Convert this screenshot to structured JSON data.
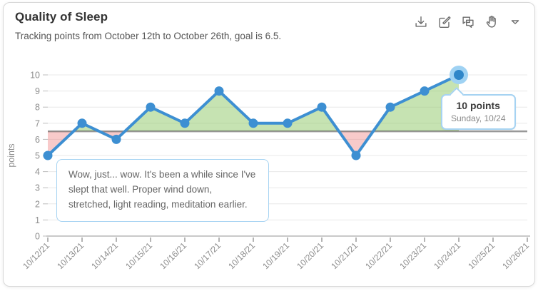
{
  "header": {
    "title": "Quality of Sleep",
    "subtitle": "Tracking points from October 12th to October 26th, goal is 6.5."
  },
  "toolbar": {
    "icons": [
      "download-icon",
      "edit-icon",
      "comments-icon",
      "pan-icon",
      "chevron-down-icon"
    ]
  },
  "chart_data": {
    "type": "line",
    "title": "Quality of Sleep",
    "xlabel": "",
    "ylabel": "points",
    "categories": [
      "10/12/21",
      "10/13/21",
      "10/14/21",
      "10/15/21",
      "10/16/21",
      "10/17/21",
      "10/18/21",
      "10/19/21",
      "10/20/21",
      "10/21/21",
      "10/22/21",
      "10/23/21",
      "10/24/21",
      "10/25/21",
      "10/26/21"
    ],
    "values": [
      5,
      7,
      6,
      8,
      7,
      9,
      7,
      7,
      8,
      5,
      8,
      9,
      10,
      null,
      null
    ],
    "goal": 6.5,
    "ylim": [
      0,
      10
    ],
    "y_ticks": [
      0,
      1,
      2,
      3,
      4,
      5,
      6,
      7,
      8,
      9,
      10
    ],
    "grid": true,
    "highlight_index": 12,
    "colors": {
      "line": "#3d8fd2",
      "point": "#3d8fd2",
      "highlight_halo": "#9fd2f3",
      "highlight_point": "#2e86c9",
      "above_goal_fill": "rgba(141,199,101,0.5)",
      "below_goal_fill": "rgba(238,128,128,0.42)",
      "goal_line": "rgba(70,70,70,0.55)",
      "grid_line": "#e8e8e8",
      "axis_line": "#c9c9c9",
      "tick": "#9b9b9b",
      "tick_label": "#8e8e8e"
    }
  },
  "tooltip": {
    "value_label": "10 points",
    "date_label": "Sunday, 10/24"
  },
  "annotation": {
    "text": "Wow, just... wow. It's been a while since I've slept that well. Proper wind down, stretched, light reading, meditation earlier."
  }
}
